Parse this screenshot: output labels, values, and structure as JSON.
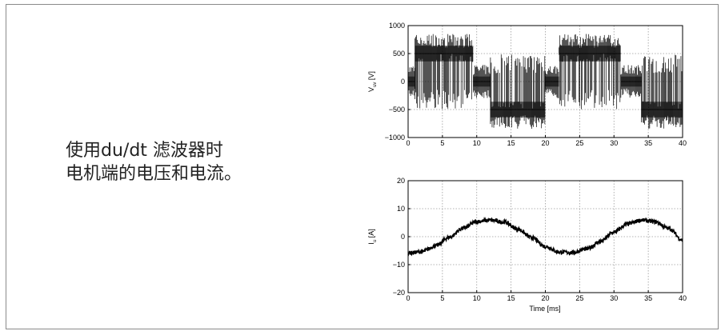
{
  "caption": {
    "line1": "使用du/dt 滤波器时",
    "line2": "电机端的电压和电流。"
  },
  "chart_data": [
    {
      "type": "line",
      "name": "voltage",
      "ylabel_main": "V",
      "ylabel_sub": "uv",
      "ylabel_unit": "[V]",
      "xlabel": "",
      "xlim": [
        0,
        40
      ],
      "ylim": [
        -1000,
        1000
      ],
      "xticks": [
        "0",
        "5",
        "10",
        "15",
        "20",
        "25",
        "30",
        "35",
        "40"
      ],
      "yticks": [
        "1000",
        "500",
        "0",
        "−500",
        "−1000"
      ],
      "grid": true,
      "color": "#000000",
      "segments": [
        {
          "x": [
            0,
            1
          ],
          "level": 0
        },
        {
          "x": [
            1,
            9.5
          ],
          "level": 500
        },
        {
          "x": [
            9.5,
            12
          ],
          "level": 0
        },
        {
          "x": [
            12,
            20
          ],
          "level": -500
        },
        {
          "x": [
            20,
            22
          ],
          "level": 0
        },
        {
          "x": [
            22,
            31
          ],
          "level": 500
        },
        {
          "x": [
            31,
            34
          ],
          "level": 0
        },
        {
          "x": [
            34,
            40
          ],
          "level": -500
        }
      ]
    },
    {
      "type": "line",
      "name": "current",
      "ylabel_main": "I",
      "ylabel_sub": "u",
      "ylabel_unit": "[A]",
      "xlabel": "Time [ms]",
      "xlim": [
        0,
        40
      ],
      "ylim": [
        -20,
        20
      ],
      "xticks": [
        "0",
        "5",
        "10",
        "15",
        "20",
        "25",
        "30",
        "35",
        "40"
      ],
      "yticks": [
        "20",
        "10",
        "0",
        "−10",
        "−20"
      ],
      "grid": true,
      "color": "#000000",
      "x": [
        0,
        2,
        4,
        6,
        8,
        10,
        12,
        14,
        16,
        18,
        20,
        22,
        24,
        26,
        28,
        30,
        32,
        34,
        36,
        38,
        40
      ],
      "y": [
        -5.8,
        -5.4,
        -3.3,
        -0.2,
        3.0,
        5.4,
        5.9,
        5.2,
        2.7,
        -0.4,
        -3.5,
        -5.5,
        -5.7,
        -4.4,
        -1.8,
        1.6,
        4.6,
        5.9,
        5.3,
        2.9,
        -1.2
      ]
    }
  ]
}
